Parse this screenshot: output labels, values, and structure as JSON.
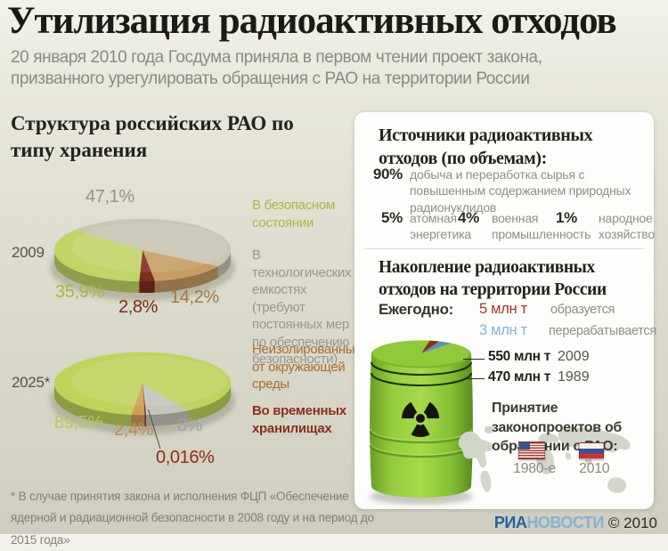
{
  "header": {
    "title": "Утилизация радиоактивных отходов",
    "subtitle": "20 января 2010 года Госдума приняла в первом чтении проект закона, призванного урегулировать обращения с РАО на территории России"
  },
  "left_panel": {
    "heading": "Структура российских РАО по типу хранения",
    "legend": [
      {
        "label": "В безопасном состоянии",
        "color": "#a9b845"
      },
      {
        "label": "В технологических емкостях (требуют постоянных мер по обеспечению безопасности)",
        "color": "#98978d"
      },
      {
        "label": "Неизолированные от окружающей среды",
        "color": "#ad6b2b"
      },
      {
        "label": "Во временных хранилищах",
        "color": "#8a2e1e"
      }
    ],
    "footnote": "* В случае принятия закона и исполнения ФЦП «Обеспечение ядерной и радиационной безопасности в 2008 году и на период до 2015 года»"
  },
  "chart_data": [
    {
      "type": "pie",
      "title": "Структура российских РАО по типу хранения, 2009",
      "year_label": "2009",
      "unit": "%",
      "slices": [
        {
          "label": "Неизолированные от окружающей среды",
          "value": 14.2,
          "display": "14,2%",
          "color": "#c79d61"
        },
        {
          "label": "Во временных хранилищах",
          "value": 2.8,
          "display": "2,8%",
          "color": "#7e2c1c"
        },
        {
          "label": "В безопасном состоянии",
          "value": 35.9,
          "display": "35,9%",
          "color": "#c3d467"
        },
        {
          "label": "В технологических емкостях (требуют постоянных мер по обеспечению безопасности)",
          "value": 47.1,
          "display": "47,1%",
          "color": "#c9c6b5"
        }
      ]
    },
    {
      "type": "pie",
      "title": "Структура российских РАО по типу хранения, 2025 (прогноз)",
      "year_label": "2025*",
      "unit": "%",
      "slices": [
        {
          "label": "В технологических емкостях (требуют постоянных мер по обеспечению безопасности)",
          "value": 8,
          "display": "8%",
          "color": "#c6c5bb"
        },
        {
          "label": "Во временных хранилищах",
          "value": 0.016,
          "display": "0,016%",
          "color": "#7e2c1c"
        },
        {
          "label": "Неизолированные от окружающей среды",
          "value": 2.4,
          "display": "2,4%",
          "color": "#cf9f58"
        },
        {
          "label": "В безопасном состоянии",
          "value": 89.5,
          "display": "89,5%",
          "color": "#bdd35c"
        }
      ]
    }
  ],
  "sources": {
    "heading": "Источники радиоактивных отходов (по объемам):",
    "items": [
      {
        "pct": "90%",
        "label": "добыча и переработка сырья с повышенным содержанием природных радионуклидов"
      },
      {
        "pct": "5%",
        "label": "атомная энергетика"
      },
      {
        "pct": "4%",
        "label": "военная промышленность"
      },
      {
        "pct": "1%",
        "label": "народное хозяйство"
      }
    ]
  },
  "accumulation": {
    "heading": "Накопление радиоактивных отходов на территории России",
    "annual_label": "Ежегодно:",
    "annual": [
      {
        "amount": "5 млн т",
        "desc": "образуется"
      },
      {
        "amount": "3 млн т",
        "desc": "перерабатывается"
      }
    ],
    "totals": [
      {
        "amount": "550 млн т",
        "year": "2009"
      },
      {
        "amount": "470 млн т",
        "year": "1989"
      }
    ]
  },
  "laws": {
    "heading": "Принятие законопроектов об обращении с РАО:",
    "items": [
      {
        "flag": "usa",
        "label": "1980-е"
      },
      {
        "flag": "russia",
        "label": "2010"
      }
    ]
  },
  "brand": {
    "name_bold": "РИА",
    "name_light": "НОВОСТИ",
    "copyright": "© 2010"
  },
  "colors": {
    "annual_generated": "#a5372a",
    "annual_processed": "#7fb2d8",
    "brand_dark": "#1f63a0",
    "brand_light": "#85b2d4"
  }
}
